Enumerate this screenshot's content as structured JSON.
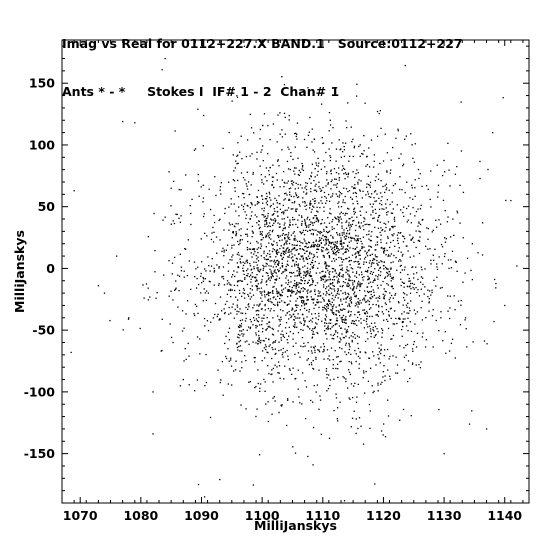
{
  "header": {
    "line1": "Imag vs Real for 0112+227.X BAND.1   Source:0112+227",
    "line2": "Ants * - *     Stokes I  IF# 1 - 2  Chan# 1"
  },
  "chart_data": {
    "type": "scatter",
    "title": "Imag vs Real for 0112+227.X BAND.1   Source:0112+227",
    "subtitle": "Ants * - *     Stokes I  IF# 1 - 2  Chan# 1",
    "xlabel": "MilliJanskys",
    "ylabel": "MilliJanskys",
    "xlim": [
      1067,
      1144
    ],
    "ylim": [
      -190,
      185
    ],
    "xticks": [
      1070,
      1080,
      1090,
      1100,
      1110,
      1120,
      1130,
      1140
    ],
    "yticks": [
      150,
      100,
      50,
      0,
      -50,
      -100,
      -150
    ],
    "grid": false,
    "legend": "none",
    "point_color": "#000000",
    "center": {
      "x": 1109,
      "y": 0
    },
    "spread": {
      "x": 10,
      "y": 50
    },
    "n_points": 3500,
    "seed": 11201227,
    "outliers": [
      {
        "x": 1069,
        "y": 63
      },
      {
        "x": 1068.5,
        "y": -68
      },
      {
        "x": 1073,
        "y": -14
      },
      {
        "x": 1074,
        "y": -20
      },
      {
        "x": 1076,
        "y": 10
      },
      {
        "x": 1077,
        "y": 119
      },
      {
        "x": 1079,
        "y": 118
      },
      {
        "x": 1078,
        "y": -40
      },
      {
        "x": 1082,
        "y": -134
      },
      {
        "x": 1084,
        "y": 170
      },
      {
        "x": 1083.5,
        "y": 161
      },
      {
        "x": 1082,
        "y": -100
      },
      {
        "x": 1089.5,
        "y": -175
      },
      {
        "x": 1090.5,
        "y": -185
      },
      {
        "x": 1093,
        "y": -171
      },
      {
        "x": 1138,
        "y": 110
      },
      {
        "x": 1141,
        "y": 55
      },
      {
        "x": 1142,
        "y": 2
      },
      {
        "x": 1140,
        "y": -30
      },
      {
        "x": 1137,
        "y": -130
      },
      {
        "x": 1130,
        "y": -150
      },
      {
        "x": 1100,
        "y": 183
      },
      {
        "x": 1085,
        "y": 65
      },
      {
        "x": 1087,
        "y": -90
      }
    ]
  }
}
